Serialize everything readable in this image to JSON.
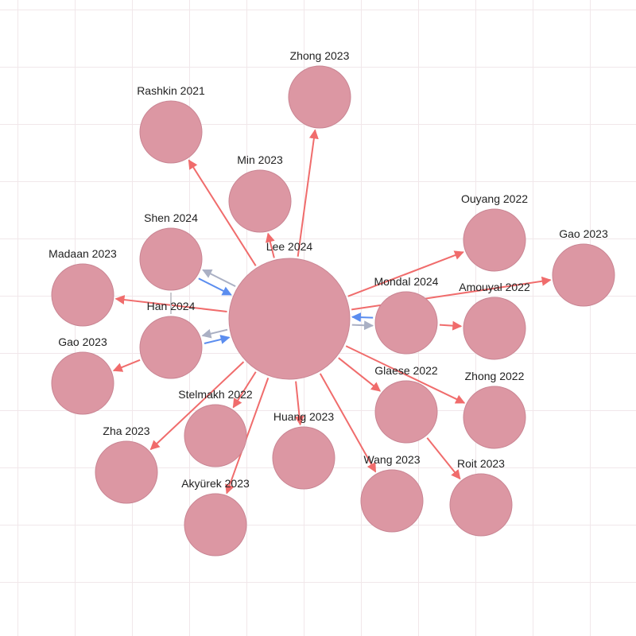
{
  "graph": {
    "colors": {
      "node_fill": "#dc97a3",
      "edge_red": "#f06c6c",
      "edge_blue": "#5b8def",
      "edge_gray": "#aab0c4"
    },
    "nodes": [
      {
        "id": "lee2024",
        "label": "Lee 2024",
        "role": "center"
      },
      {
        "id": "zhong2023",
        "label": "Zhong 2023"
      },
      {
        "id": "rashkin2021",
        "label": "Rashkin 2021"
      },
      {
        "id": "min2023",
        "label": "Min 2023"
      },
      {
        "id": "shen2024",
        "label": "Shen 2024"
      },
      {
        "id": "madaan2023",
        "label": "Madaan 2023"
      },
      {
        "id": "han2024",
        "label": "Han 2024"
      },
      {
        "id": "gao2023a",
        "label": "Gao 2023"
      },
      {
        "id": "stelmakh2022",
        "label": "Stelmakh 2022"
      },
      {
        "id": "zha2023",
        "label": "Zha 2023"
      },
      {
        "id": "akyurek2023",
        "label": "Akyürek 2023"
      },
      {
        "id": "huang2023",
        "label": "Huang 2023"
      },
      {
        "id": "wang2023",
        "label": "Wang 2023"
      },
      {
        "id": "glaese2022",
        "label": "Glaese 2022"
      },
      {
        "id": "roit2023",
        "label": "Roit 2023"
      },
      {
        "id": "zhong2022",
        "label": "Zhong 2022"
      },
      {
        "id": "mondal2024",
        "label": "Mondal 2024"
      },
      {
        "id": "amouyal2022",
        "label": "Amouyal 2022"
      },
      {
        "id": "ouyang2022",
        "label": "Ouyang 2022"
      },
      {
        "id": "gao2023b",
        "label": "Gao 2023"
      }
    ],
    "edges": [
      {
        "from": "lee2024",
        "to": "zhong2023",
        "kind": "red"
      },
      {
        "from": "lee2024",
        "to": "rashkin2021",
        "kind": "red"
      },
      {
        "from": "lee2024",
        "to": "min2023",
        "kind": "red"
      },
      {
        "from": "lee2024",
        "to": "madaan2023",
        "kind": "red"
      },
      {
        "from": "lee2024",
        "to": "zha2023",
        "kind": "red"
      },
      {
        "from": "lee2024",
        "to": "stelmakh2022",
        "kind": "red"
      },
      {
        "from": "lee2024",
        "to": "akyurek2023",
        "kind": "red"
      },
      {
        "from": "lee2024",
        "to": "huang2023",
        "kind": "red"
      },
      {
        "from": "lee2024",
        "to": "wang2023",
        "kind": "red"
      },
      {
        "from": "lee2024",
        "to": "glaese2022",
        "kind": "red"
      },
      {
        "from": "lee2024",
        "to": "zhong2022",
        "kind": "red"
      },
      {
        "from": "lee2024",
        "to": "ouyang2022",
        "kind": "red"
      },
      {
        "from": "lee2024",
        "to": "gao2023b",
        "kind": "red"
      },
      {
        "from": "mondal2024",
        "to": "amouyal2022",
        "kind": "red"
      },
      {
        "from": "glaese2022",
        "to": "roit2023",
        "kind": "red"
      },
      {
        "from": "han2024",
        "to": "gao2023a",
        "kind": "red"
      },
      {
        "from": "shen2024",
        "to": "lee2024",
        "kind": "blue"
      },
      {
        "from": "lee2024",
        "to": "shen2024",
        "kind": "gray"
      },
      {
        "from": "han2024",
        "to": "lee2024",
        "kind": "blue"
      },
      {
        "from": "lee2024",
        "to": "han2024",
        "kind": "gray"
      },
      {
        "from": "mondal2024",
        "to": "lee2024",
        "kind": "blue"
      },
      {
        "from": "lee2024",
        "to": "mondal2024",
        "kind": "gray"
      },
      {
        "from": "shen2024",
        "to": "han2024",
        "kind": "plain"
      }
    ]
  }
}
